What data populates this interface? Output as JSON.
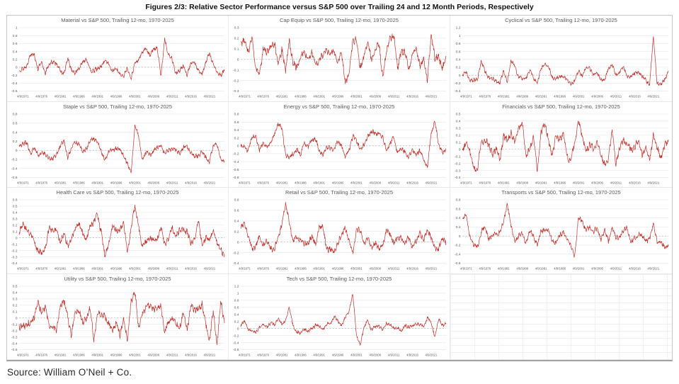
{
  "page": {
    "title": "Figures 2/3: Relative Sector Performance versus S&P 500 over Trailing 24 and 12 Month Periods, Respectively",
    "source": "Source: William O’Neil + Co."
  },
  "style": {
    "line_color": "#c0322d",
    "gridline_color": "#e0e0e0",
    "zero_line_color": "#a8a8a8",
    "label_color": "#595959"
  },
  "axis": {
    "x_labels": [
      "4/9/1971",
      "4/9/1976",
      "4/9/1981",
      "4/9/1986",
      "4/9/1991",
      "4/9/1996",
      "4/9/2001",
      "4/9/2006",
      "4/9/2011",
      "4/9/2016",
      "4/9/2021"
    ],
    "x_label_years": [
      1971,
      1976,
      1981,
      1986,
      1991,
      1996,
      2001,
      2006,
      2011,
      2016,
      2021
    ],
    "years_start": 1970,
    "years_end": 2025
  },
  "chart_data": [
    {
      "type": "line",
      "title": "Material vs S&P 500, Trailing 12-mo, 1970-2025",
      "ylim": [
        -0.6,
        1.0
      ],
      "ytick_step": 0.2,
      "noise": 0.045,
      "approx_yearly_values": [
        -0.1,
        -0.05,
        0.05,
        0.3,
        0.35,
        -0.05,
        0.1,
        -0.12,
        0.05,
        0.15,
        0.1,
        -0.1,
        -0.15,
        0.2,
        -0.05,
        -0.15,
        -0.05,
        0.15,
        0.2,
        -0.05,
        -0.1,
        -0.05,
        0.05,
        0.15,
        0.1,
        -0.1,
        -0.05,
        -0.15,
        -0.25,
        0.0,
        -0.3,
        0.1,
        0.2,
        0.35,
        0.5,
        0.3,
        0.45,
        0.5,
        -0.25,
        0.75,
        0.3,
        0.2,
        -0.15,
        -0.1,
        0.05,
        -0.2,
        0.1,
        0.15,
        -0.1,
        -0.15,
        0.1,
        0.35,
        0.1,
        -0.15,
        -0.2,
        -0.05
      ]
    },
    {
      "type": "line",
      "title": "Cap Equip vs S&P 500, Trailing 12-mo, 1970-2025",
      "ylim": [
        -0.3,
        0.3
      ],
      "ytick_step": 0.1,
      "noise": 0.028,
      "approx_yearly_values": [
        0.15,
        0.2,
        0.05,
        0.23,
        -0.1,
        -0.15,
        0.1,
        0.05,
        0.12,
        0.15,
        -0.05,
        0.1,
        -0.12,
        0.2,
        -0.05,
        -0.08,
        0.03,
        0.05,
        0.02,
        0.05,
        -0.05,
        0.0,
        0.03,
        0.1,
        0.05,
        0.08,
        -0.02,
        0.05,
        -0.2,
        -0.15,
        0.18,
        0.2,
        -0.1,
        0.05,
        0.15,
        0.0,
        0.1,
        0.15,
        -0.15,
        0.05,
        0.2,
        0.23,
        -0.1,
        0.1,
        0.05,
        -0.1,
        0.05,
        0.1,
        -0.05,
        0.0,
        -0.2,
        0.25,
        0.0,
        0.05,
        -0.1,
        0.0
      ]
    },
    {
      "type": "line",
      "title": "Cyclical vs S&P 500, Trailing 12-mo, 1970-2025",
      "ylim": [
        -0.4,
        1.2
      ],
      "ytick_step": 0.2,
      "noise": 0.04,
      "approx_yearly_values": [
        0.0,
        0.05,
        -0.1,
        -0.15,
        -0.1,
        0.35,
        0.1,
        -0.05,
        -0.1,
        -0.15,
        -0.2,
        0.1,
        -0.15,
        0.35,
        0.25,
        -0.05,
        -0.1,
        -0.05,
        0.1,
        -0.05,
        -0.2,
        0.15,
        0.3,
        0.2,
        -0.05,
        -0.1,
        -0.05,
        0.0,
        -0.15,
        -0.2,
        -0.15,
        0.1,
        0.0,
        0.15,
        0.2,
        0.0,
        0.05,
        -0.1,
        -0.15,
        0.2,
        0.25,
        0.0,
        0.1,
        0.2,
        0.0,
        -0.05,
        0.05,
        0.1,
        -0.05,
        -0.1,
        -0.25,
        1.0,
        -0.2,
        -0.25,
        -0.1,
        0.1
      ]
    },
    {
      "type": "line",
      "title": "Staple vs S&P 500, Trailing 12-mo, 1970-2025",
      "ylim": [
        -0.6,
        0.8
      ],
      "ytick_step": 0.2,
      "noise": 0.04,
      "approx_yearly_values": [
        0.1,
        0.15,
        0.15,
        -0.05,
        0.05,
        -0.1,
        -0.05,
        -0.1,
        -0.15,
        -0.2,
        -0.1,
        0.1,
        0.2,
        -0.15,
        0.05,
        0.2,
        0.15,
        -0.05,
        0.05,
        0.2,
        0.25,
        0.2,
        -0.05,
        -0.2,
        -0.05,
        0.0,
        0.05,
        0.0,
        -0.1,
        -0.3,
        -0.5,
        0.55,
        0.3,
        -0.2,
        -0.05,
        -0.1,
        0.0,
        0.05,
        0.15,
        -0.1,
        0.0,
        0.05,
        0.0,
        -0.05,
        0.05,
        0.1,
        -0.05,
        -0.15,
        -0.1,
        -0.05,
        -0.15,
        -0.25,
        0.1,
        0.15,
        -0.2,
        -0.25
      ]
    },
    {
      "type": "line",
      "title": "Energy vs S&P 500, Trailing 12-mo, 1970-2025",
      "ylim": [
        -0.8,
        0.8
      ],
      "ytick_step": 0.2,
      "noise": 0.05,
      "approx_yearly_values": [
        0.0,
        -0.05,
        -0.1,
        0.2,
        0.25,
        -0.1,
        0.05,
        0.0,
        0.05,
        0.3,
        0.55,
        0.45,
        -0.2,
        -0.3,
        -0.2,
        -0.1,
        -0.25,
        0.1,
        -0.05,
        0.15,
        0.2,
        -0.15,
        -0.2,
        -0.05,
        -0.05,
        -0.1,
        0.1,
        0.05,
        -0.3,
        -0.1,
        0.25,
        0.1,
        -0.05,
        0.0,
        0.25,
        0.35,
        0.3,
        0.35,
        0.2,
        -0.1,
        0.05,
        0.2,
        -0.15,
        -0.1,
        -0.15,
        -0.3,
        -0.1,
        -0.2,
        -0.15,
        -0.35,
        -0.55,
        0.3,
        0.65,
        0.0,
        -0.15,
        -0.1
      ]
    },
    {
      "type": "line",
      "title": "Financials vs S&P 500, Trailing 12-mo, 1970-2025",
      "ylim": [
        -0.4,
        0.5
      ],
      "ytick_step": 0.1,
      "noise": 0.04,
      "approx_yearly_values": [
        0.0,
        0.1,
        -0.05,
        -0.25,
        -0.3,
        0.1,
        0.15,
        0.05,
        -0.05,
        0.0,
        -0.15,
        0.2,
        0.1,
        0.25,
        0.1,
        0.3,
        0.4,
        -0.15,
        0.05,
        0.15,
        -0.3,
        0.25,
        0.35,
        0.15,
        -0.1,
        0.2,
        0.15,
        0.2,
        -0.1,
        -0.15,
        0.1,
        0.42,
        0.15,
        0.0,
        0.05,
        0.0,
        0.1,
        -0.1,
        -0.2,
        -0.15,
        0.3,
        -0.2,
        0.0,
        0.15,
        0.05,
        0.0,
        0.05,
        0.1,
        -0.05,
        0.0,
        -0.15,
        0.2,
        0.0,
        -0.1,
        0.05,
        0.1
      ]
    },
    {
      "type": "line",
      "title": "Health Care vs S&P 500, Trailing 12-mo, 1970-2025",
      "ylim": [
        -0.4,
        0.6
      ],
      "ytick_step": 0.1,
      "noise": 0.04,
      "approx_yearly_values": [
        0.1,
        0.2,
        0.15,
        0.05,
        -0.05,
        -0.2,
        -0.25,
        -0.15,
        0.15,
        0.1,
        0.15,
        -0.1,
        0.1,
        -0.15,
        0.0,
        0.15,
        0.2,
        0.1,
        -0.05,
        0.2,
        0.25,
        0.35,
        0.1,
        -0.3,
        -0.1,
        0.2,
        0.1,
        0.15,
        0.2,
        -0.2,
        0.15,
        0.5,
        0.2,
        -0.15,
        -0.05,
        0.0,
        -0.05,
        0.0,
        0.15,
        -0.1,
        0.0,
        0.15,
        0.05,
        0.1,
        0.15,
        0.1,
        -0.1,
        0.0,
        0.25,
        -0.1,
        0.0,
        -0.05,
        0.15,
        -0.1,
        -0.15,
        -0.3
      ]
    },
    {
      "type": "line",
      "title": "Retail vs S&P 500, Trailing 12-mo, 1970-2025",
      "ylim": [
        -0.4,
        0.8
      ],
      "ytick_step": 0.2,
      "noise": 0.045,
      "approx_yearly_values": [
        0.3,
        0.35,
        0.1,
        -0.1,
        -0.1,
        0.1,
        -0.05,
        0.0,
        -0.1,
        -0.15,
        0.1,
        0.35,
        0.7,
        0.4,
        0.0,
        0.1,
        0.05,
        -0.05,
        0.0,
        0.1,
        -0.05,
        0.3,
        0.25,
        -0.1,
        -0.15,
        -0.2,
        0.0,
        0.1,
        0.3,
        0.0,
        -0.2,
        0.25,
        0.2,
        0.0,
        0.05,
        -0.1,
        0.0,
        -0.15,
        -0.05,
        0.2,
        0.15,
        0.0,
        0.05,
        0.1,
        -0.05,
        0.1,
        -0.1,
        0.0,
        0.2,
        0.0,
        0.25,
        0.1,
        -0.15,
        -0.1,
        0.05,
        0.0
      ]
    },
    {
      "type": "line",
      "title": "Transports vs S&P 500, Trailing 12-mo, 1970-2025",
      "ylim": [
        -0.6,
        0.8
      ],
      "ytick_step": 0.2,
      "noise": 0.045,
      "approx_yearly_values": [
        0.4,
        0.45,
        0.0,
        -0.2,
        -0.25,
        0.1,
        0.2,
        -0.05,
        0.0,
        0.05,
        0.1,
        0.3,
        0.73,
        0.2,
        -0.1,
        0.0,
        0.05,
        -0.15,
        0.1,
        0.0,
        -0.2,
        0.1,
        0.15,
        0.1,
        -0.1,
        -0.15,
        0.0,
        0.1,
        -0.1,
        -0.2,
        -0.45,
        0.4,
        0.35,
        0.1,
        0.2,
        0.1,
        0.15,
        -0.05,
        0.1,
        -0.1,
        0.2,
        -0.05,
        0.0,
        0.1,
        0.2,
        -0.15,
        -0.05,
        0.05,
        0.0,
        -0.1,
        -0.05,
        0.25,
        -0.1,
        -0.15,
        -0.25,
        -0.2
      ]
    },
    {
      "type": "line",
      "title": "Utility vs S&P 500, Trailing 12-mo, 1970-2025",
      "ylim": [
        -0.5,
        0.5
      ],
      "ytick_step": 0.1,
      "noise": 0.045,
      "approx_yearly_values": [
        -0.15,
        -0.1,
        -0.15,
        -0.05,
        0.0,
        0.25,
        0.1,
        0.15,
        -0.1,
        -0.15,
        -0.2,
        0.2,
        0.25,
        0.05,
        -0.3,
        0.1,
        0.15,
        -0.1,
        0.0,
        0.15,
        -0.35,
        0.1,
        0.0,
        0.05,
        -0.1,
        -0.2,
        -0.05,
        -0.3,
        0.0,
        -0.35,
        0.25,
        0.45,
        -0.2,
        0.1,
        0.15,
        0.2,
        0.15,
        0.15,
        0.2,
        -0.25,
        -0.05,
        0.0,
        -0.1,
        -0.15,
        0.1,
        -0.2,
        0.2,
        0.1,
        0.15,
        0.2,
        -0.1,
        -0.35,
        0.1,
        -0.4,
        0.25,
        -0.1
      ]
    },
    {
      "type": "line",
      "title": "Tech vs S&P 500, Trailing 12-mo, 1970-2025",
      "ylim": [
        -0.6,
        1.2
      ],
      "ytick_step": 0.2,
      "noise": 0.04,
      "approx_yearly_values": [
        0.1,
        0.2,
        0.0,
        -0.1,
        -0.1,
        0.05,
        0.1,
        0.05,
        0.15,
        0.1,
        0.3,
        0.1,
        0.25,
        0.58,
        0.1,
        -0.1,
        -0.15,
        0.0,
        -0.1,
        0.0,
        0.1,
        0.05,
        0.0,
        0.1,
        0.15,
        0.35,
        0.2,
        0.1,
        0.3,
        0.5,
        1.0,
        -0.2,
        -0.45,
        0.0,
        0.25,
        -0.05,
        0.05,
        0.1,
        -0.05,
        0.15,
        0.1,
        0.0,
        0.05,
        -0.1,
        0.1,
        0.05,
        0.05,
        0.15,
        0.1,
        0.05,
        0.3,
        0.15,
        -0.2,
        0.25,
        0.1,
        0.15
      ]
    }
  ]
}
